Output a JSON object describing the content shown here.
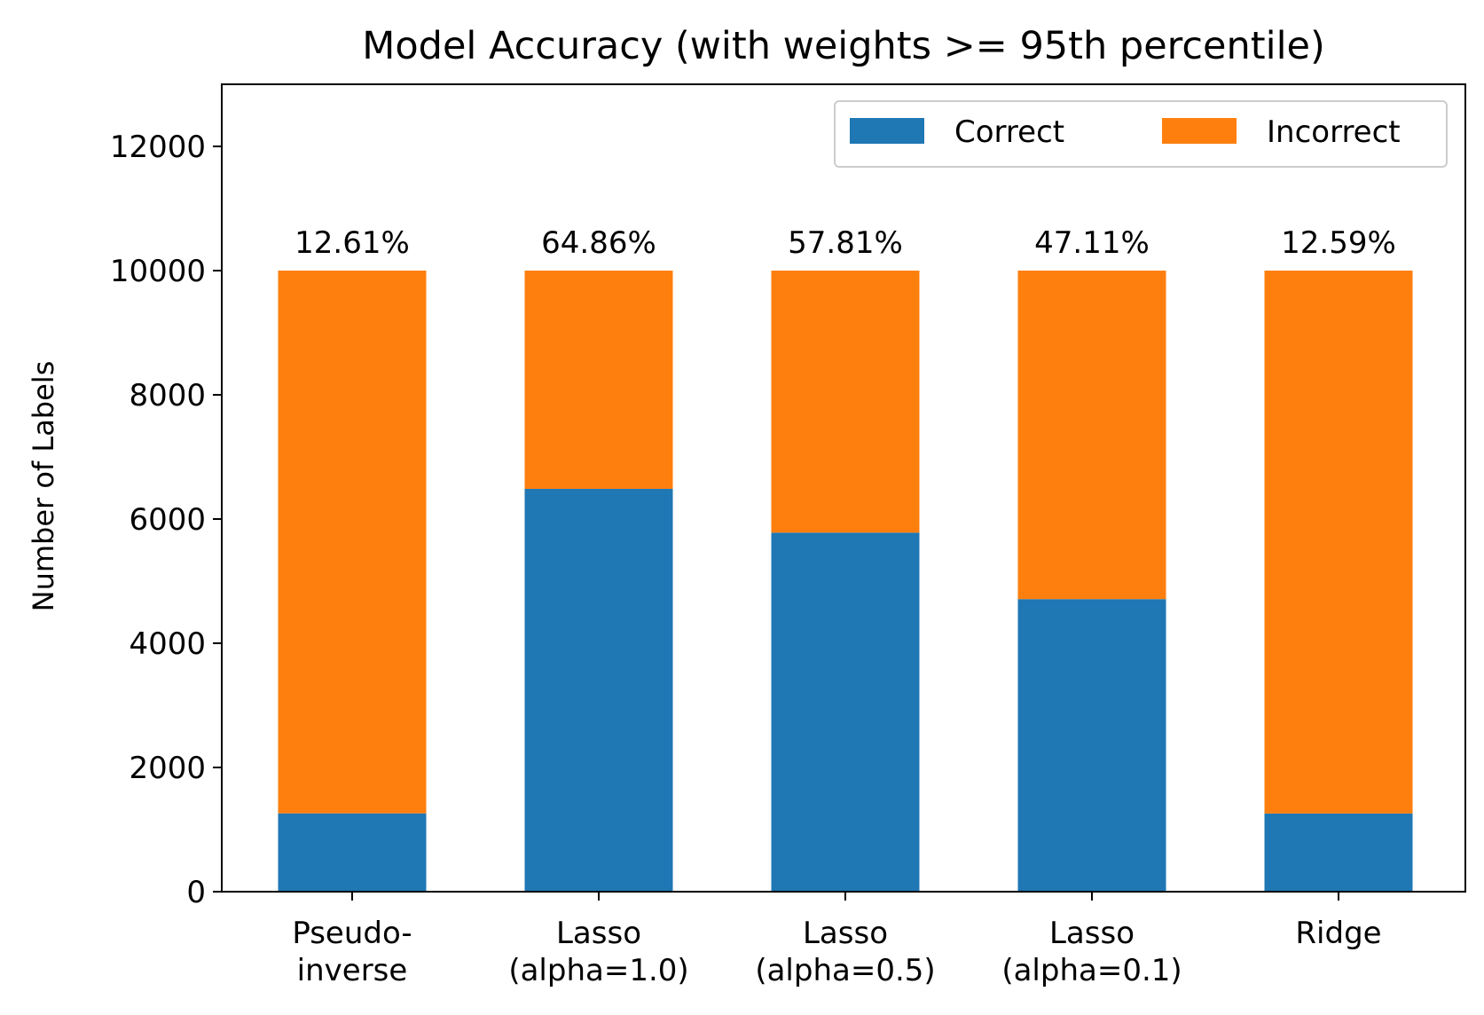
{
  "chart_data": {
    "type": "bar",
    "stacked": true,
    "title": "Model Accuracy (with weights >= 95th percentile)",
    "xlabel": "",
    "ylabel": "Number of Labels",
    "ylim": [
      0,
      13000
    ],
    "yticks": [
      0,
      2000,
      4000,
      6000,
      8000,
      10000,
      12000
    ],
    "grid": false,
    "legend_position": "top-right",
    "categories": [
      [
        "Pseudo-",
        "inverse"
      ],
      [
        "Lasso",
        "(alpha=1.0)"
      ],
      [
        "Lasso",
        "(alpha=0.5)"
      ],
      [
        "Lasso",
        "(alpha=0.1)"
      ],
      [
        "Ridge"
      ]
    ],
    "series": [
      {
        "name": "Correct",
        "color": "#1f77b4",
        "values": [
          1261,
          6486,
          5781,
          4711,
          1259
        ]
      },
      {
        "name": "Incorrect",
        "color": "#ff7f0e",
        "values": [
          8739,
          3514,
          4219,
          5289,
          8741
        ]
      }
    ],
    "data_labels": [
      "12.61%",
      "64.86%",
      "57.81%",
      "47.11%",
      "12.59%"
    ]
  }
}
